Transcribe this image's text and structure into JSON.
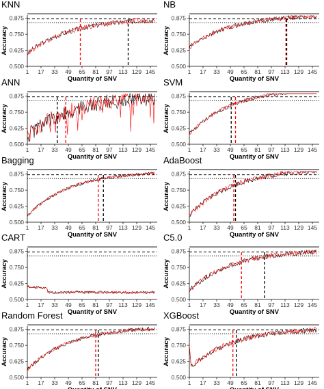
{
  "chart_data": [
    {
      "type": "line",
      "title": "KNN",
      "xlabel": "Quantity of SNV",
      "ylabel": "Accuracy",
      "xticks": [
        1,
        17,
        33,
        49,
        65,
        81,
        97,
        113,
        129,
        145
      ],
      "yticks": [
        0.5,
        0.625,
        0.75,
        0.875
      ],
      "ytick_labels": [
        "0.500",
        "0.625",
        "0.750",
        "0.875"
      ],
      "xlim": [
        1,
        153
      ],
      "ylim": [
        0.5,
        0.9
      ],
      "reference_lines": {
        "solid": 0.91,
        "dashed": 0.87,
        "dotted": 0.84
      },
      "series": [
        {
          "color": "#000000",
          "start": 0.6,
          "end": 0.86,
          "noise": 0.02
        },
        {
          "color": "#ff0000",
          "start": 0.6,
          "end": 0.86,
          "noise": 0.02
        }
      ],
      "vlines": [
        {
          "x": 63,
          "color": "#ff0000"
        },
        {
          "x": 119,
          "color": "#000000"
        }
      ]
    },
    {
      "type": "line",
      "title": "NB",
      "xlabel": "Quantity of SNV",
      "ylabel": "Accuracy",
      "xticks": [
        1,
        17,
        33,
        49,
        65,
        81,
        97,
        113,
        129,
        145
      ],
      "yticks": [
        0.5,
        0.625,
        0.75,
        0.875
      ],
      "ytick_labels": [
        "0.500",
        "0.625",
        "0.750",
        "0.875"
      ],
      "xlim": [
        1,
        153
      ],
      "ylim": [
        0.5,
        0.9
      ],
      "reference_lines": {
        "solid": 0.91,
        "dashed": 0.87,
        "dotted": 0.84
      },
      "series": [
        {
          "color": "#000000",
          "start": 0.65,
          "end": 0.89,
          "noise": 0.018
        },
        {
          "color": "#ff0000",
          "start": 0.65,
          "end": 0.89,
          "noise": 0.018
        }
      ],
      "vlines": [
        {
          "x": 114,
          "color": "#ff0000"
        },
        {
          "x": 115,
          "color": "#000000"
        }
      ]
    },
    {
      "type": "line",
      "title": "ANN",
      "xlabel": "Quantity of SNV",
      "ylabel": "Accuracy",
      "xticks": [
        1,
        17,
        33,
        49,
        65,
        81,
        97,
        113,
        129,
        145
      ],
      "yticks": [
        0.5,
        0.625,
        0.75,
        0.875
      ],
      "ytick_labels": [
        "0.500",
        "0.625",
        "0.750",
        "0.875"
      ],
      "xlim": [
        1,
        153
      ],
      "ylim": [
        0.5,
        0.9
      ],
      "reference_lines": {
        "solid": 0.91,
        "dashed": 0.87,
        "dotted": 0.84
      },
      "series": [
        {
          "color": "#000000",
          "start": 0.56,
          "end": 0.86,
          "noise": 0.06
        },
        {
          "color": "#ff0000",
          "start": 0.56,
          "end": 0.86,
          "noise": 0.06
        }
      ],
      "vlines": [
        {
          "x": 36,
          "color": "#000000"
        },
        {
          "x": 46,
          "color": "#ff0000"
        }
      ]
    },
    {
      "type": "line",
      "title": "SVM",
      "xlabel": "Quantity of SNV",
      "ylabel": "Accuracy",
      "xticks": [
        1,
        17,
        33,
        49,
        65,
        81,
        97,
        113,
        129,
        145
      ],
      "yticks": [
        0.5,
        0.625,
        0.75,
        0.875
      ],
      "ytick_labels": [
        "0.500",
        "0.625",
        "0.750",
        "0.875"
      ],
      "xlim": [
        1,
        153
      ],
      "ylim": [
        0.5,
        0.9
      ],
      "reference_lines": {
        "solid": 0.91,
        "dashed": 0.87,
        "dotted": 0.84
      },
      "series": [
        {
          "color": "#000000",
          "start": 0.58,
          "end": 0.92,
          "noise": 0.015
        },
        {
          "color": "#ff0000",
          "start": 0.58,
          "end": 0.92,
          "noise": 0.015
        }
      ],
      "vlines": [
        {
          "x": 50,
          "color": "#000000"
        },
        {
          "x": 55,
          "color": "#ff0000"
        }
      ]
    },
    {
      "type": "line",
      "title": "Bagging",
      "xlabel": "Quantity of SNV",
      "ylabel": "Accuracy",
      "xticks": [
        1,
        17,
        33,
        49,
        65,
        81,
        97,
        113,
        129,
        145
      ],
      "yticks": [
        0.5,
        0.625,
        0.75,
        0.875
      ],
      "ytick_labels": [
        "0.500",
        "0.625",
        "0.750",
        "0.875"
      ],
      "xlim": [
        1,
        153
      ],
      "ylim": [
        0.5,
        0.9
      ],
      "reference_lines": {
        "solid": 0.91,
        "dashed": 0.87,
        "dotted": 0.84
      },
      "series": [
        {
          "color": "#000000",
          "start": 0.55,
          "end": 0.88,
          "noise": 0.012
        },
        {
          "color": "#ff0000",
          "start": 0.55,
          "end": 0.88,
          "noise": 0.012
        }
      ],
      "vlines": [
        {
          "x": 84,
          "color": "#ff0000"
        },
        {
          "x": 90,
          "color": "#000000"
        }
      ]
    },
    {
      "type": "line",
      "title": "AdaBoost",
      "xlabel": "Quantity of SNV",
      "ylabel": "Accuracy",
      "xticks": [
        1,
        17,
        33,
        49,
        65,
        81,
        97,
        113,
        129,
        145
      ],
      "yticks": [
        0.5,
        0.625,
        0.75,
        0.875
      ],
      "ytick_labels": [
        "0.500",
        "0.625",
        "0.750",
        "0.875"
      ],
      "xlim": [
        1,
        153
      ],
      "ylim": [
        0.5,
        0.9
      ],
      "reference_lines": {
        "solid": 0.91,
        "dashed": 0.87,
        "dotted": 0.84
      },
      "series": [
        {
          "color": "#000000",
          "start": 0.55,
          "end": 0.9,
          "noise": 0.02
        },
        {
          "color": "#ff0000",
          "start": 0.55,
          "end": 0.9,
          "noise": 0.02
        }
      ],
      "vlines": [
        {
          "x": 53,
          "color": "#ff0000"
        },
        {
          "x": 55,
          "color": "#000000"
        }
      ]
    },
    {
      "type": "line",
      "title": "CART",
      "xlabel": "Quantity of SNV",
      "ylabel": "Accuracy",
      "xticks": [
        1,
        17,
        33,
        49,
        65,
        81,
        97,
        113,
        129,
        145
      ],
      "yticks": [
        0.5,
        0.625,
        0.75,
        0.875
      ],
      "ytick_labels": [
        "0.500",
        "0.625",
        "0.750",
        "0.875"
      ],
      "xlim": [
        1,
        153
      ],
      "ylim": [
        0.5,
        0.9
      ],
      "reference_lines": {
        "solid": 0.91,
        "dashed": 0.87,
        "dotted": 0.84
      },
      "series": [
        {
          "color": "#000000",
          "start": 0.6,
          "end": 0.55,
          "noise": 0.01
        },
        {
          "color": "#ff0000",
          "start": 0.6,
          "end": 0.55,
          "noise": 0.01
        }
      ],
      "vlines": []
    },
    {
      "type": "line",
      "title": "C5.0",
      "xlabel": "Quantity of SNV",
      "ylabel": "Accuracy",
      "xticks": [
        1,
        17,
        33,
        49,
        65,
        81,
        97,
        113,
        129,
        145
      ],
      "yticks": [
        0.5,
        0.625,
        0.75,
        0.875
      ],
      "ytick_labels": [
        "0.500",
        "0.625",
        "0.750",
        "0.875"
      ],
      "xlim": [
        1,
        153
      ],
      "ylim": [
        0.5,
        0.9
      ],
      "reference_lines": {
        "solid": 0.91,
        "dashed": 0.87,
        "dotted": 0.84
      },
      "series": [
        {
          "color": "#000000",
          "start": 0.57,
          "end": 0.87,
          "noise": 0.02
        },
        {
          "color": "#ff0000",
          "start": 0.57,
          "end": 0.87,
          "noise": 0.02
        }
      ],
      "vlines": [
        {
          "x": 62,
          "color": "#ff0000"
        },
        {
          "x": 89,
          "color": "#000000"
        }
      ]
    },
    {
      "type": "line",
      "title": "Random Forest",
      "xlabel": "Quantity of SNV",
      "ylabel": "Accuracy",
      "xticks": [
        1,
        17,
        33,
        49,
        65,
        81,
        97,
        113,
        129,
        145
      ],
      "yticks": [
        0.5,
        0.625,
        0.75,
        0.875
      ],
      "ytick_labels": [
        "0.500",
        "0.625",
        "0.750",
        "0.875"
      ],
      "xlim": [
        1,
        153
      ],
      "ylim": [
        0.5,
        0.9
      ],
      "reference_lines": {
        "solid": 0.91,
        "dashed": 0.87,
        "dotted": 0.84
      },
      "series": [
        {
          "color": "#000000",
          "start": 0.56,
          "end": 0.88,
          "noise": 0.015
        },
        {
          "color": "#ff0000",
          "start": 0.56,
          "end": 0.88,
          "noise": 0.015
        }
      ],
      "vlines": [
        {
          "x": 81,
          "color": "#ff0000"
        },
        {
          "x": 84,
          "color": "#000000"
        }
      ]
    },
    {
      "type": "line",
      "title": "XGBoost",
      "xlabel": "Quantity of SNV",
      "ylabel": "Accuracy",
      "xticks": [
        1,
        17,
        33,
        49,
        65,
        81,
        97,
        113,
        129,
        145
      ],
      "yticks": [
        0.5,
        0.625,
        0.75,
        0.875
      ],
      "ytick_labels": [
        "0.500",
        "0.625",
        "0.750",
        "0.875"
      ],
      "xlim": [
        1,
        153
      ],
      "ylim": [
        0.5,
        0.9
      ],
      "reference_lines": {
        "solid": 0.91,
        "dashed": 0.87,
        "dotted": 0.84
      },
      "series": [
        {
          "color": "#000000",
          "start": 0.57,
          "end": 0.87,
          "noise": 0.02
        },
        {
          "color": "#ff0000",
          "start": 0.57,
          "end": 0.87,
          "noise": 0.02
        }
      ],
      "vlines": [
        {
          "x": 52,
          "color": "#ff0000"
        },
        {
          "x": 56,
          "color": "#000000"
        }
      ]
    }
  ]
}
